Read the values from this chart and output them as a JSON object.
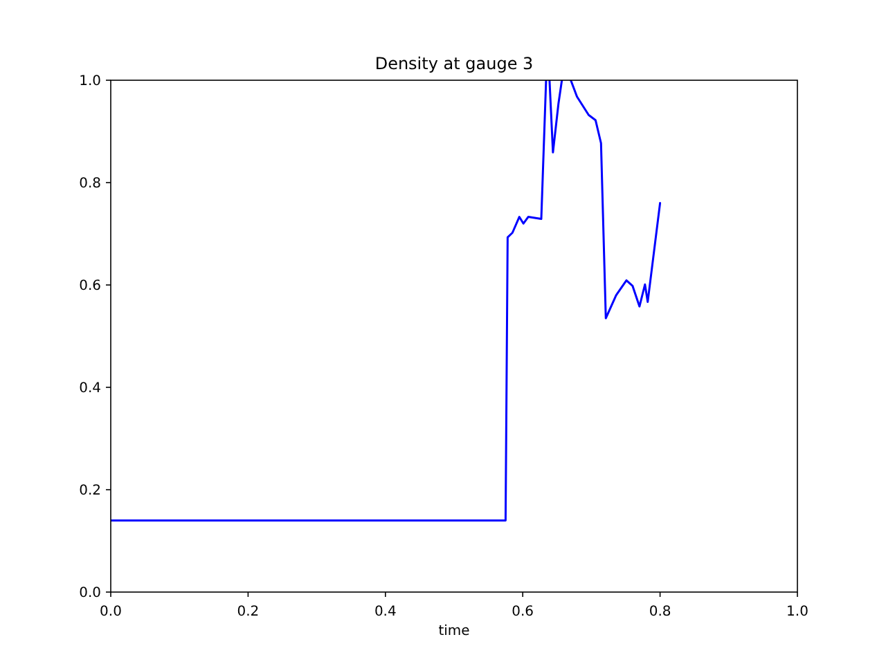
{
  "chart_data": {
    "type": "line",
    "title": "Density at gauge 3",
    "xlabel": "time",
    "xlim": [
      0,
      1
    ],
    "ylim": [
      0,
      1
    ],
    "xticks": [
      {
        "value": 0,
        "label": "0.0"
      },
      0.2,
      0.4,
      0.6,
      0.8,
      {
        "value": 1,
        "label": "1.0"
      }
    ],
    "yticks": [
      {
        "value": 0,
        "label": "0.0"
      },
      0.2,
      0.4,
      0.6,
      0.8,
      {
        "value": 1,
        "label": "1.0"
      }
    ],
    "grid": false,
    "marker": "none",
    "line_style": "solid",
    "series": [
      {
        "color": "#0000ff",
        "x": [
          0,
          0.575,
          0.578,
          0.585,
          0.595,
          0.601,
          0.608,
          0.627,
          0.634,
          0.636,
          0.639,
          0.644,
          0.652,
          0.657,
          0.663,
          0.67,
          0.679,
          0.696,
          0.706,
          0.714,
          0.721,
          0.736,
          0.751,
          0.76,
          0.77,
          0.778,
          0.782,
          0.8
        ],
        "values": [
          0.14,
          0.14,
          0.693,
          0.702,
          0.733,
          0.72,
          0.733,
          0.729,
          1.0,
          null,
          1.0,
          0.859,
          0.954,
          1.0,
          null,
          1.0,
          0.968,
          0.932,
          0.922,
          0.877,
          0.535,
          0.58,
          0.609,
          0.598,
          0.558,
          0.601,
          0.567,
          0.76
        ]
      }
    ]
  }
}
